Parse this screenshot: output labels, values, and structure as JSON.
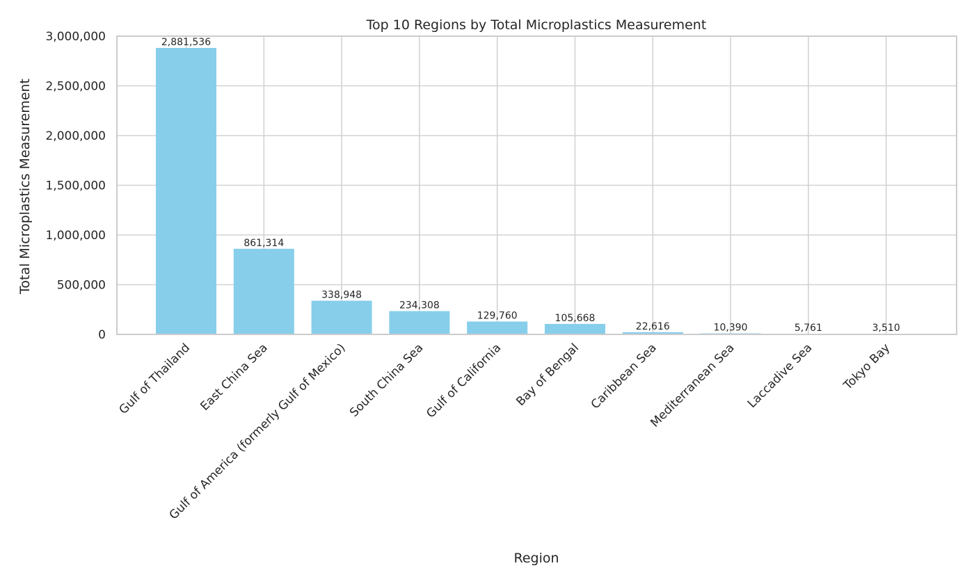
{
  "chart_data": {
    "type": "bar",
    "title": "Top 10 Regions by Total Microplastics Measurement",
    "xlabel": "Region",
    "ylabel": "Total Microplastics Measurement",
    "categories": [
      "Gulf of Thailand",
      "East China Sea",
      "Gulf of America (formerly Gulf of Mexico)",
      "South China Sea",
      "Gulf of California",
      "Bay of Bengal",
      "Caribbean Sea",
      "Mediterranean Sea",
      "Laccadive Sea",
      "Tokyo Bay"
    ],
    "values": [
      2881536,
      861314,
      338948,
      234308,
      129760,
      105668,
      22616,
      10390,
      5761,
      3510
    ],
    "data_labels": [
      "2,881,536",
      "861,314",
      "338,948",
      "234,308",
      "129,760",
      "105,668",
      "22,616",
      "10,390",
      "5,761",
      "3,510"
    ],
    "ylim": [
      0,
      3000000
    ],
    "yticks": [
      0,
      500000,
      1000000,
      1500000,
      2000000,
      2500000,
      3000000
    ],
    "ytick_labels": [
      "0",
      "500,000",
      "1,000,000",
      "1,500,000",
      "2,000,000",
      "2,500,000",
      "3,000,000"
    ],
    "grid": true,
    "bar_color": "#87ceeb",
    "grid_color": "#d3d3d3",
    "text_color": "#262626"
  }
}
